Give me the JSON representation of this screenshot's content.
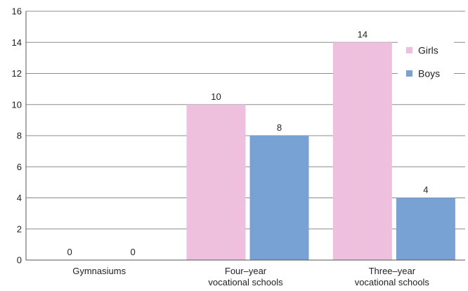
{
  "chart_data": {
    "type": "bar",
    "categories": [
      "Gymnasiums",
      "Four–year vocational schools",
      "Three–year vocational schools"
    ],
    "category_lines": [
      [
        "Gymnasiums"
      ],
      [
        "Four–year",
        "vocational schools"
      ],
      [
        "Three–year",
        "vocational schools"
      ]
    ],
    "series": [
      {
        "name": "Girls",
        "values": [
          0,
          10,
          14
        ],
        "color": "#efc0dd"
      },
      {
        "name": "Boys",
        "values": [
          0,
          8,
          4
        ],
        "color": "#78a1d4"
      }
    ],
    "ylim": [
      0,
      16
    ],
    "yticks": [
      0,
      2,
      4,
      6,
      8,
      10,
      12,
      14,
      16
    ],
    "grid": true,
    "legend": "top-right"
  }
}
